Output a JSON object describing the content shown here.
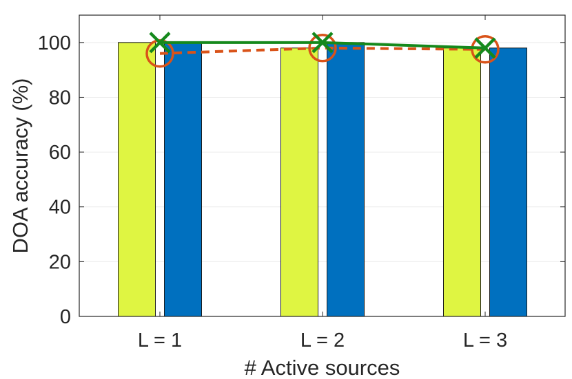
{
  "chart_data": {
    "type": "bar",
    "title": "",
    "xlabel": "# Active sources",
    "ylabel": "DOA accuracy (%)",
    "categories": [
      "L = 1",
      "L = 2",
      "L = 3"
    ],
    "ylim": [
      0,
      110
    ],
    "yticks": [
      "0",
      "20",
      "40",
      "60",
      "80",
      "100"
    ],
    "grid": true,
    "legend": "none",
    "bar_series": [
      {
        "values": [
          100,
          98,
          98
        ],
        "color": "#dff542"
      },
      {
        "values": [
          100,
          100,
          98
        ],
        "color": "#0070bf"
      }
    ],
    "line_series": [
      {
        "values": [
          100,
          100,
          98
        ],
        "color": "#15891c",
        "style": "solid",
        "marker": "x"
      },
      {
        "values": [
          96,
          98,
          97.5
        ],
        "color": "#d95319",
        "style": "dashed",
        "marker": "circle"
      }
    ]
  }
}
